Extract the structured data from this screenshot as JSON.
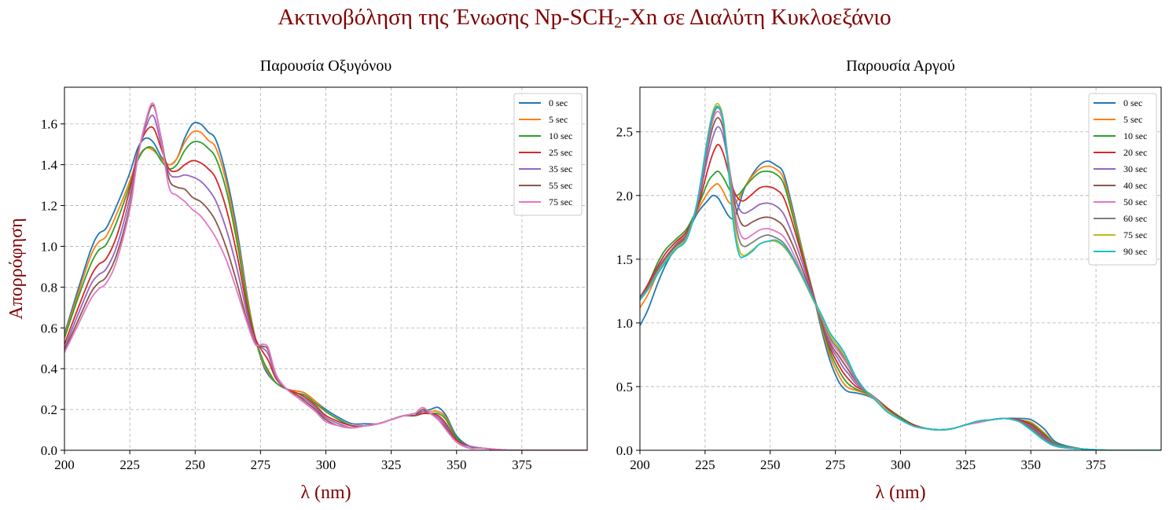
{
  "figure": {
    "title_parts": [
      "Ακτινοβόληση της Ένωσης Np-SCH",
      "2",
      "-Xn σε Διαλύτη Κυκλοεξάνιο"
    ],
    "title_color": "#800000"
  },
  "chart_data": [
    {
      "type": "line",
      "title": "Παρουσία Οξυγόνου",
      "xlabel": "λ (nm)",
      "ylabel": "Απορρόφηση",
      "label_color": "#800000",
      "xlim": [
        200,
        400
      ],
      "ylim": [
        0,
        1.78
      ],
      "xticks": [
        200,
        225,
        250,
        275,
        300,
        325,
        350,
        375
      ],
      "yticks": [
        0.0,
        0.2,
        0.4,
        0.6,
        0.8,
        1.0,
        1.2,
        1.4,
        1.6
      ],
      "ytick_labels": [
        "0.0",
        "0.2",
        "0.4",
        "0.6",
        "0.8",
        "1.0",
        "1.2",
        "1.4",
        "1.6"
      ],
      "grid": true,
      "legend_position": "top-right",
      "x": [
        200,
        205,
        210,
        213,
        216,
        220,
        225,
        228,
        231,
        234,
        237,
        240,
        243,
        246,
        249,
        252,
        255,
        258,
        262,
        266,
        270,
        273,
        276,
        278,
        281,
        285,
        289,
        292,
        296,
        300,
        305,
        310,
        315,
        320,
        325,
        330,
        334,
        337,
        340,
        343,
        346,
        350,
        355,
        360,
        370,
        380,
        400
      ],
      "series": [
        {
          "name": "0 sec",
          "color": "#1f77b4",
          "values": [
            0.57,
            0.78,
            0.98,
            1.06,
            1.09,
            1.2,
            1.36,
            1.48,
            1.53,
            1.51,
            1.44,
            1.4,
            1.43,
            1.53,
            1.6,
            1.6,
            1.56,
            1.52,
            1.34,
            1.08,
            0.75,
            0.55,
            0.42,
            0.37,
            0.33,
            0.3,
            0.29,
            0.28,
            0.24,
            0.2,
            0.16,
            0.13,
            0.13,
            0.13,
            0.15,
            0.17,
            0.18,
            0.19,
            0.2,
            0.21,
            0.17,
            0.07,
            0.02,
            0.01,
            0.0,
            0.0,
            0.0
          ]
        },
        {
          "name": "5 sec",
          "color": "#ff7f0e",
          "values": [
            0.56,
            0.76,
            0.95,
            1.02,
            1.05,
            1.16,
            1.32,
            1.43,
            1.48,
            1.47,
            1.43,
            1.4,
            1.43,
            1.51,
            1.56,
            1.56,
            1.52,
            1.48,
            1.31,
            1.05,
            0.74,
            0.55,
            0.43,
            0.38,
            0.33,
            0.3,
            0.29,
            0.28,
            0.24,
            0.19,
            0.15,
            0.12,
            0.12,
            0.13,
            0.15,
            0.17,
            0.17,
            0.18,
            0.19,
            0.19,
            0.16,
            0.06,
            0.02,
            0.01,
            0.0,
            0.0,
            0.0
          ]
        },
        {
          "name": "10 sec",
          "color": "#2ca02c",
          "values": [
            0.55,
            0.74,
            0.91,
            0.98,
            1.01,
            1.12,
            1.3,
            1.42,
            1.48,
            1.48,
            1.42,
            1.38,
            1.4,
            1.47,
            1.51,
            1.51,
            1.48,
            1.43,
            1.27,
            1.02,
            0.72,
            0.55,
            0.44,
            0.39,
            0.33,
            0.3,
            0.28,
            0.27,
            0.23,
            0.19,
            0.15,
            0.12,
            0.12,
            0.13,
            0.15,
            0.17,
            0.17,
            0.18,
            0.18,
            0.18,
            0.15,
            0.06,
            0.02,
            0.01,
            0.0,
            0.0,
            0.0
          ]
        },
        {
          "name": "25 sec",
          "color": "#d62728",
          "values": [
            0.52,
            0.69,
            0.85,
            0.91,
            0.94,
            1.05,
            1.28,
            1.46,
            1.56,
            1.58,
            1.48,
            1.38,
            1.37,
            1.4,
            1.42,
            1.41,
            1.38,
            1.33,
            1.18,
            0.96,
            0.69,
            0.55,
            0.48,
            0.44,
            0.35,
            0.3,
            0.28,
            0.26,
            0.22,
            0.17,
            0.14,
            0.12,
            0.12,
            0.13,
            0.15,
            0.17,
            0.17,
            0.18,
            0.18,
            0.17,
            0.13,
            0.05,
            0.02,
            0.01,
            0.0,
            0.0,
            0.0
          ]
        },
        {
          "name": "35 sec",
          "color": "#9467bd",
          "values": [
            0.5,
            0.66,
            0.81,
            0.86,
            0.89,
            1.0,
            1.24,
            1.45,
            1.58,
            1.64,
            1.5,
            1.36,
            1.34,
            1.35,
            1.34,
            1.32,
            1.28,
            1.22,
            1.08,
            0.89,
            0.66,
            0.53,
            0.5,
            0.47,
            0.36,
            0.3,
            0.27,
            0.25,
            0.21,
            0.16,
            0.13,
            0.11,
            0.12,
            0.13,
            0.15,
            0.17,
            0.17,
            0.19,
            0.18,
            0.16,
            0.12,
            0.04,
            0.02,
            0.01,
            0.0,
            0.0,
            0.0
          ]
        },
        {
          "name": "55 sec",
          "color": "#8c564b",
          "values": [
            0.49,
            0.63,
            0.77,
            0.82,
            0.85,
            0.96,
            1.2,
            1.44,
            1.6,
            1.69,
            1.53,
            1.33,
            1.29,
            1.28,
            1.24,
            1.22,
            1.18,
            1.12,
            0.99,
            0.82,
            0.63,
            0.52,
            0.51,
            0.49,
            0.37,
            0.3,
            0.27,
            0.24,
            0.2,
            0.15,
            0.12,
            0.11,
            0.12,
            0.13,
            0.15,
            0.17,
            0.17,
            0.2,
            0.18,
            0.15,
            0.11,
            0.04,
            0.01,
            0.01,
            0.0,
            0.0,
            0.0
          ]
        },
        {
          "name": "75 sec",
          "color": "#e377c2",
          "values": [
            0.48,
            0.61,
            0.74,
            0.79,
            0.82,
            0.93,
            1.18,
            1.43,
            1.61,
            1.7,
            1.52,
            1.29,
            1.25,
            1.22,
            1.18,
            1.15,
            1.1,
            1.04,
            0.93,
            0.78,
            0.62,
            0.52,
            0.52,
            0.5,
            0.37,
            0.3,
            0.26,
            0.23,
            0.19,
            0.14,
            0.12,
            0.11,
            0.12,
            0.13,
            0.15,
            0.17,
            0.18,
            0.21,
            0.18,
            0.15,
            0.1,
            0.04,
            0.01,
            0.01,
            0.0,
            0.0,
            0.0
          ]
        }
      ]
    },
    {
      "type": "line",
      "title": "Παρουσία Αργού",
      "xlabel": "λ (nm)",
      "ylabel": "",
      "label_color": "#800000",
      "xlim": [
        200,
        400
      ],
      "ylim": [
        0,
        2.85
      ],
      "xticks": [
        200,
        225,
        250,
        275,
        300,
        325,
        350,
        375
      ],
      "yticks": [
        0.0,
        0.5,
        1.0,
        1.5,
        2.0,
        2.5
      ],
      "ytick_labels": [
        "0.0",
        "0.5",
        "1.0",
        "1.5",
        "2.0",
        "2.5"
      ],
      "grid": true,
      "legend_position": "top-right",
      "x": [
        200,
        203,
        207,
        210,
        214,
        218,
        222,
        226,
        228,
        230,
        232,
        234,
        236,
        238,
        240,
        243,
        246,
        249,
        252,
        255,
        258,
        262,
        266,
        270,
        273,
        276,
        278,
        280,
        283,
        287,
        291,
        295,
        300,
        305,
        310,
        315,
        320,
        325,
        330,
        335,
        340,
        345,
        350,
        355,
        360,
        370,
        380,
        400
      ],
      "series": [
        {
          "name": "0 sec",
          "color": "#1f77b4",
          "values": [
            0.98,
            1.1,
            1.32,
            1.46,
            1.6,
            1.7,
            1.86,
            1.96,
            2.0,
            1.98,
            1.91,
            1.84,
            1.82,
            1.92,
            2.05,
            2.16,
            2.24,
            2.27,
            2.24,
            2.18,
            1.95,
            1.6,
            1.27,
            0.92,
            0.7,
            0.55,
            0.49,
            0.46,
            0.45,
            0.43,
            0.39,
            0.33,
            0.26,
            0.2,
            0.17,
            0.16,
            0.17,
            0.2,
            0.22,
            0.24,
            0.25,
            0.25,
            0.24,
            0.17,
            0.06,
            0.01,
            0.0,
            0.0
          ]
        },
        {
          "name": "5 sec",
          "color": "#ff7f0e",
          "values": [
            1.12,
            1.22,
            1.4,
            1.52,
            1.62,
            1.72,
            1.88,
            2.02,
            2.07,
            2.09,
            2.03,
            1.95,
            1.93,
            1.98,
            2.06,
            2.15,
            2.21,
            2.23,
            2.21,
            2.14,
            1.92,
            1.59,
            1.27,
            0.95,
            0.74,
            0.6,
            0.53,
            0.49,
            0.47,
            0.44,
            0.39,
            0.33,
            0.26,
            0.2,
            0.17,
            0.16,
            0.17,
            0.2,
            0.22,
            0.24,
            0.25,
            0.24,
            0.22,
            0.14,
            0.05,
            0.01,
            0.0,
            0.0
          ]
        },
        {
          "name": "10 sec",
          "color": "#2ca02c",
          "values": [
            1.2,
            1.3,
            1.48,
            1.58,
            1.66,
            1.74,
            1.9,
            2.1,
            2.16,
            2.19,
            2.14,
            2.06,
            2.0,
            2.01,
            2.06,
            2.13,
            2.18,
            2.19,
            2.17,
            2.1,
            1.89,
            1.57,
            1.27,
            0.97,
            0.77,
            0.64,
            0.57,
            0.52,
            0.48,
            0.45,
            0.4,
            0.33,
            0.26,
            0.2,
            0.17,
            0.16,
            0.17,
            0.2,
            0.22,
            0.24,
            0.25,
            0.24,
            0.21,
            0.13,
            0.05,
            0.01,
            0.0,
            0.0
          ]
        },
        {
          "name": "20 sec",
          "color": "#d62728",
          "values": [
            1.2,
            1.3,
            1.45,
            1.55,
            1.64,
            1.72,
            1.9,
            2.2,
            2.33,
            2.4,
            2.33,
            2.18,
            2.04,
            1.97,
            1.96,
            2.01,
            2.06,
            2.07,
            2.05,
            1.99,
            1.82,
            1.54,
            1.26,
            0.99,
            0.8,
            0.68,
            0.61,
            0.56,
            0.5,
            0.46,
            0.4,
            0.33,
            0.25,
            0.2,
            0.17,
            0.16,
            0.17,
            0.2,
            0.22,
            0.24,
            0.25,
            0.24,
            0.2,
            0.12,
            0.04,
            0.01,
            0.0,
            0.0
          ]
        },
        {
          "name": "30 sec",
          "color": "#9467bd",
          "values": [
            1.2,
            1.28,
            1.43,
            1.52,
            1.62,
            1.7,
            1.92,
            2.3,
            2.46,
            2.54,
            2.46,
            2.24,
            2.02,
            1.9,
            1.86,
            1.89,
            1.93,
            1.94,
            1.92,
            1.86,
            1.72,
            1.49,
            1.24,
            1.0,
            0.82,
            0.72,
            0.65,
            0.6,
            0.52,
            0.46,
            0.4,
            0.32,
            0.25,
            0.19,
            0.17,
            0.16,
            0.17,
            0.2,
            0.22,
            0.24,
            0.25,
            0.23,
            0.19,
            0.11,
            0.04,
            0.01,
            0.0,
            0.0
          ]
        },
        {
          "name": "40 sec",
          "color": "#8c564b",
          "values": [
            1.2,
            1.28,
            1.42,
            1.51,
            1.61,
            1.69,
            1.93,
            2.36,
            2.54,
            2.61,
            2.52,
            2.26,
            1.98,
            1.82,
            1.76,
            1.79,
            1.82,
            1.83,
            1.81,
            1.76,
            1.64,
            1.44,
            1.22,
            1.01,
            0.84,
            0.75,
            0.69,
            0.63,
            0.54,
            0.46,
            0.39,
            0.32,
            0.25,
            0.19,
            0.17,
            0.16,
            0.17,
            0.2,
            0.22,
            0.24,
            0.25,
            0.23,
            0.18,
            0.1,
            0.03,
            0.01,
            0.0,
            0.0
          ]
        },
        {
          "name": "50 sec",
          "color": "#e377c2",
          "values": [
            1.19,
            1.27,
            1.41,
            1.5,
            1.6,
            1.68,
            1.94,
            2.4,
            2.59,
            2.66,
            2.56,
            2.26,
            1.93,
            1.73,
            1.66,
            1.69,
            1.73,
            1.74,
            1.72,
            1.68,
            1.58,
            1.4,
            1.21,
            1.02,
            0.86,
            0.78,
            0.72,
            0.66,
            0.55,
            0.46,
            0.39,
            0.31,
            0.24,
            0.19,
            0.17,
            0.16,
            0.17,
            0.2,
            0.22,
            0.24,
            0.25,
            0.23,
            0.17,
            0.09,
            0.03,
            0.01,
            0.0,
            0.0
          ]
        },
        {
          "name": "60 sec",
          "color": "#7f7f7f",
          "values": [
            1.19,
            1.27,
            1.41,
            1.5,
            1.6,
            1.68,
            1.95,
            2.43,
            2.62,
            2.69,
            2.58,
            2.24,
            1.88,
            1.66,
            1.6,
            1.63,
            1.67,
            1.69,
            1.67,
            1.63,
            1.54,
            1.38,
            1.2,
            1.03,
            0.88,
            0.8,
            0.74,
            0.68,
            0.56,
            0.46,
            0.39,
            0.31,
            0.24,
            0.19,
            0.17,
            0.16,
            0.17,
            0.2,
            0.23,
            0.24,
            0.25,
            0.23,
            0.17,
            0.09,
            0.03,
            0.01,
            0.0,
            0.0
          ]
        },
        {
          "name": "75 sec",
          "color": "#bcbd22",
          "values": [
            1.18,
            1.26,
            1.4,
            1.49,
            1.59,
            1.67,
            1.95,
            2.46,
            2.66,
            2.72,
            2.6,
            2.22,
            1.82,
            1.58,
            1.53,
            1.57,
            1.62,
            1.64,
            1.64,
            1.6,
            1.52,
            1.37,
            1.2,
            1.04,
            0.9,
            0.82,
            0.76,
            0.69,
            0.57,
            0.46,
            0.39,
            0.31,
            0.24,
            0.19,
            0.17,
            0.16,
            0.17,
            0.2,
            0.23,
            0.24,
            0.25,
            0.23,
            0.16,
            0.08,
            0.03,
            0.01,
            0.0,
            0.0
          ]
        },
        {
          "name": "90 sec",
          "color": "#17becf",
          "values": [
            1.18,
            1.26,
            1.39,
            1.48,
            1.58,
            1.66,
            1.95,
            2.45,
            2.64,
            2.7,
            2.58,
            2.19,
            1.76,
            1.54,
            1.52,
            1.56,
            1.62,
            1.64,
            1.65,
            1.61,
            1.53,
            1.38,
            1.21,
            1.05,
            0.92,
            0.84,
            0.78,
            0.7,
            0.57,
            0.46,
            0.38,
            0.3,
            0.24,
            0.19,
            0.17,
            0.16,
            0.17,
            0.2,
            0.23,
            0.24,
            0.25,
            0.23,
            0.16,
            0.08,
            0.03,
            0.01,
            0.0,
            0.0
          ]
        }
      ]
    }
  ]
}
